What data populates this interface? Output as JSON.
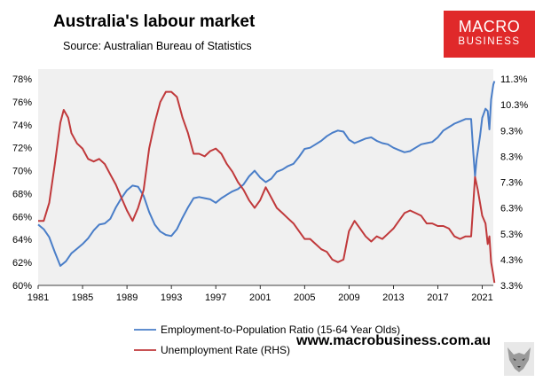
{
  "header": {
    "title": "Australia's labour market",
    "subtitle": "Source: Australian Bureau of Statistics"
  },
  "logo": {
    "line1": "MACRO",
    "line2": "BUSINESS",
    "color": "#e0292a"
  },
  "footer": {
    "url": "www.macrobusiness.com.au"
  },
  "colors": {
    "employment": "#4a7ec8",
    "unemployment": "#c0393b",
    "plot_bg": "#f0f0f0"
  },
  "chart_data": {
    "type": "line",
    "title": "Australia's labour market",
    "subtitle": "Source: Australian Bureau of Statistics",
    "xlim": [
      1981,
      2022
    ],
    "ylim_left": [
      60,
      78
    ],
    "ylim_right": [
      3.3,
      11.3
    ],
    "x_ticks": [
      "1981",
      "1985",
      "1989",
      "1993",
      "1997",
      "2001",
      "2005",
      "2009",
      "2013",
      "2017",
      "2021"
    ],
    "y_left_ticks": [
      "60%",
      "62%",
      "64%",
      "66%",
      "68%",
      "70%",
      "72%",
      "74%",
      "76%",
      "78%"
    ],
    "y_right_ticks": [
      "3.3%",
      "4.3%",
      "5.3%",
      "6.3%",
      "7.3%",
      "8.3%",
      "9.3%",
      "10.3%",
      "11.3%"
    ],
    "grid": false,
    "legend_position": "bottom",
    "series": [
      {
        "name": "Employment-to-Population Ratio (15-64 Year Olds)",
        "axis": "left",
        "points": [
          [
            1981.0,
            65.3
          ],
          [
            1981.5,
            64.9
          ],
          [
            1982.0,
            64.2
          ],
          [
            1982.5,
            62.9
          ],
          [
            1983.0,
            61.7
          ],
          [
            1983.5,
            62.1
          ],
          [
            1984.0,
            62.8
          ],
          [
            1984.5,
            63.2
          ],
          [
            1985.0,
            63.6
          ],
          [
            1985.5,
            64.1
          ],
          [
            1986.0,
            64.8
          ],
          [
            1986.5,
            65.3
          ],
          [
            1987.0,
            65.4
          ],
          [
            1987.5,
            65.8
          ],
          [
            1988.0,
            66.8
          ],
          [
            1988.5,
            67.6
          ],
          [
            1989.0,
            68.3
          ],
          [
            1989.5,
            68.7
          ],
          [
            1990.0,
            68.6
          ],
          [
            1990.5,
            67.8
          ],
          [
            1991.0,
            66.4
          ],
          [
            1991.5,
            65.3
          ],
          [
            1992.0,
            64.7
          ],
          [
            1992.5,
            64.4
          ],
          [
            1993.0,
            64.3
          ],
          [
            1993.5,
            64.9
          ],
          [
            1994.0,
            65.9
          ],
          [
            1994.5,
            66.8
          ],
          [
            1995.0,
            67.6
          ],
          [
            1995.5,
            67.7
          ],
          [
            1996.0,
            67.6
          ],
          [
            1996.5,
            67.5
          ],
          [
            1997.0,
            67.2
          ],
          [
            1997.5,
            67.6
          ],
          [
            1998.0,
            67.9
          ],
          [
            1998.5,
            68.2
          ],
          [
            1999.0,
            68.4
          ],
          [
            1999.5,
            68.8
          ],
          [
            2000.0,
            69.5
          ],
          [
            2000.5,
            70.0
          ],
          [
            2001.0,
            69.4
          ],
          [
            2001.5,
            69.0
          ],
          [
            2002.0,
            69.3
          ],
          [
            2002.5,
            69.9
          ],
          [
            2003.0,
            70.1
          ],
          [
            2003.5,
            70.4
          ],
          [
            2004.0,
            70.6
          ],
          [
            2004.5,
            71.2
          ],
          [
            2005.0,
            71.9
          ],
          [
            2005.5,
            72.0
          ],
          [
            2006.0,
            72.3
          ],
          [
            2006.5,
            72.6
          ],
          [
            2007.0,
            73.0
          ],
          [
            2007.5,
            73.3
          ],
          [
            2008.0,
            73.5
          ],
          [
            2008.5,
            73.4
          ],
          [
            2009.0,
            72.7
          ],
          [
            2009.5,
            72.4
          ],
          [
            2010.0,
            72.6
          ],
          [
            2010.5,
            72.8
          ],
          [
            2011.0,
            72.9
          ],
          [
            2011.5,
            72.6
          ],
          [
            2012.0,
            72.4
          ],
          [
            2012.5,
            72.3
          ],
          [
            2013.0,
            72.0
          ],
          [
            2013.5,
            71.8
          ],
          [
            2014.0,
            71.6
          ],
          [
            2014.5,
            71.7
          ],
          [
            2015.0,
            72.0
          ],
          [
            2015.5,
            72.3
          ],
          [
            2016.0,
            72.4
          ],
          [
            2016.5,
            72.5
          ],
          [
            2017.0,
            72.9
          ],
          [
            2017.5,
            73.5
          ],
          [
            2018.0,
            73.8
          ],
          [
            2018.5,
            74.1
          ],
          [
            2019.0,
            74.3
          ],
          [
            2019.5,
            74.5
          ],
          [
            2020.0,
            74.5
          ],
          [
            2020.2,
            71.5
          ],
          [
            2020.35,
            69.5
          ],
          [
            2020.5,
            71.0
          ],
          [
            2020.8,
            73.0
          ],
          [
            2021.0,
            74.6
          ],
          [
            2021.3,
            75.4
          ],
          [
            2021.5,
            75.2
          ],
          [
            2021.65,
            73.6
          ],
          [
            2021.8,
            76.2
          ],
          [
            2022.0,
            77.5
          ],
          [
            2022.1,
            77.8
          ]
        ]
      },
      {
        "name": "Unemployment Rate (RHS)",
        "axis": "right",
        "points": [
          [
            1981.0,
            5.8
          ],
          [
            1981.5,
            5.8
          ],
          [
            1982.0,
            6.5
          ],
          [
            1982.5,
            8.0
          ],
          [
            1983.0,
            9.6
          ],
          [
            1983.3,
            10.1
          ],
          [
            1983.7,
            9.8
          ],
          [
            1984.0,
            9.2
          ],
          [
            1984.5,
            8.8
          ],
          [
            1985.0,
            8.6
          ],
          [
            1985.5,
            8.2
          ],
          [
            1986.0,
            8.1
          ],
          [
            1986.5,
            8.2
          ],
          [
            1987.0,
            8.0
          ],
          [
            1987.5,
            7.6
          ],
          [
            1988.0,
            7.2
          ],
          [
            1988.5,
            6.7
          ],
          [
            1989.0,
            6.2
          ],
          [
            1989.5,
            5.8
          ],
          [
            1990.0,
            6.3
          ],
          [
            1990.5,
            7.0
          ],
          [
            1991.0,
            8.6
          ],
          [
            1991.5,
            9.6
          ],
          [
            1992.0,
            10.4
          ],
          [
            1992.5,
            10.8
          ],
          [
            1993.0,
            10.8
          ],
          [
            1993.5,
            10.6
          ],
          [
            1994.0,
            9.8
          ],
          [
            1994.5,
            9.2
          ],
          [
            1995.0,
            8.4
          ],
          [
            1995.5,
            8.4
          ],
          [
            1996.0,
            8.3
          ],
          [
            1996.5,
            8.5
          ],
          [
            1997.0,
            8.6
          ],
          [
            1997.5,
            8.4
          ],
          [
            1998.0,
            8.0
          ],
          [
            1998.5,
            7.7
          ],
          [
            1999.0,
            7.3
          ],
          [
            1999.5,
            7.0
          ],
          [
            2000.0,
            6.6
          ],
          [
            2000.5,
            6.3
          ],
          [
            2001.0,
            6.6
          ],
          [
            2001.5,
            7.1
          ],
          [
            2002.0,
            6.7
          ],
          [
            2002.5,
            6.3
          ],
          [
            2003.0,
            6.1
          ],
          [
            2003.5,
            5.9
          ],
          [
            2004.0,
            5.7
          ],
          [
            2004.5,
            5.4
          ],
          [
            2005.0,
            5.1
          ],
          [
            2005.5,
            5.1
          ],
          [
            2006.0,
            4.9
          ],
          [
            2006.5,
            4.7
          ],
          [
            2007.0,
            4.6
          ],
          [
            2007.5,
            4.3
          ],
          [
            2008.0,
            4.2
          ],
          [
            2008.5,
            4.3
          ],
          [
            2009.0,
            5.4
          ],
          [
            2009.5,
            5.8
          ],
          [
            2010.0,
            5.5
          ],
          [
            2010.5,
            5.2
          ],
          [
            2011.0,
            5.0
          ],
          [
            2011.5,
            5.2
          ],
          [
            2012.0,
            5.1
          ],
          [
            2012.5,
            5.3
          ],
          [
            2013.0,
            5.5
          ],
          [
            2013.5,
            5.8
          ],
          [
            2014.0,
            6.1
          ],
          [
            2014.5,
            6.2
          ],
          [
            2015.0,
            6.1
          ],
          [
            2015.5,
            6.0
          ],
          [
            2016.0,
            5.7
          ],
          [
            2016.5,
            5.7
          ],
          [
            2017.0,
            5.6
          ],
          [
            2017.5,
            5.6
          ],
          [
            2018.0,
            5.5
          ],
          [
            2018.5,
            5.2
          ],
          [
            2019.0,
            5.1
          ],
          [
            2019.5,
            5.2
          ],
          [
            2020.0,
            5.2
          ],
          [
            2020.35,
            7.5
          ],
          [
            2020.6,
            7.0
          ],
          [
            2021.0,
            6.0
          ],
          [
            2021.3,
            5.7
          ],
          [
            2021.5,
            4.9
          ],
          [
            2021.65,
            5.2
          ],
          [
            2021.8,
            4.2
          ],
          [
            2022.0,
            3.7
          ],
          [
            2022.1,
            3.4
          ]
        ]
      }
    ]
  }
}
